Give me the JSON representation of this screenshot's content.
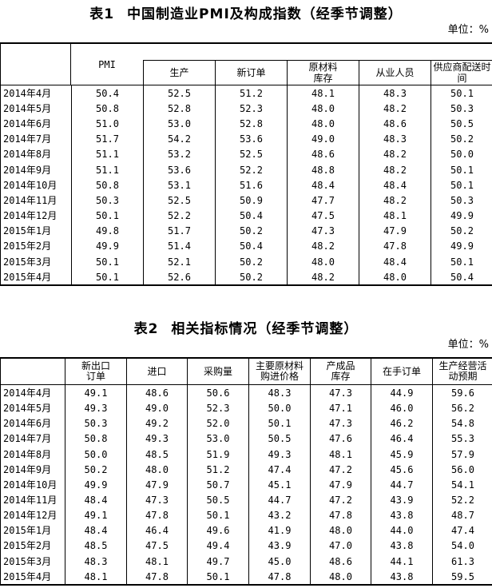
{
  "table1": {
    "title_tag": "表1",
    "title_text": "中国制造业PMI及构成指数（经季节调整）",
    "unit": "单位：%",
    "header_pmi": "PMI",
    "sub_headers": [
      "生产",
      "新订单",
      "原材料\n库存",
      "从业人员",
      "供应商配送时\n间"
    ],
    "rows": [
      {
        "label": "2014年4月",
        "values": [
          "50.4",
          "52.5",
          "51.2",
          "48.1",
          "48.3",
          "50.1"
        ]
      },
      {
        "label": "2014年5月",
        "values": [
          "50.8",
          "52.8",
          "52.3",
          "48.0",
          "48.2",
          "50.3"
        ]
      },
      {
        "label": "2014年6月",
        "values": [
          "51.0",
          "53.0",
          "52.8",
          "48.0",
          "48.6",
          "50.5"
        ]
      },
      {
        "label": "2014年7月",
        "values": [
          "51.7",
          "54.2",
          "53.6",
          "49.0",
          "48.3",
          "50.2"
        ]
      },
      {
        "label": "2014年8月",
        "values": [
          "51.1",
          "53.2",
          "52.5",
          "48.6",
          "48.2",
          "50.0"
        ]
      },
      {
        "label": "2014年9月",
        "values": [
          "51.1",
          "53.6",
          "52.2",
          "48.8",
          "48.2",
          "50.1"
        ]
      },
      {
        "label": "2014年10月",
        "values": [
          "50.8",
          "53.1",
          "51.6",
          "48.4",
          "48.4",
          "50.1"
        ]
      },
      {
        "label": "2014年11月",
        "values": [
          "50.3",
          "52.5",
          "50.9",
          "47.7",
          "48.2",
          "50.3"
        ]
      },
      {
        "label": "2014年12月",
        "values": [
          "50.1",
          "52.2",
          "50.4",
          "47.5",
          "48.1",
          "49.9"
        ]
      },
      {
        "label": "2015年1月",
        "values": [
          "49.8",
          "51.7",
          "50.2",
          "47.3",
          "47.9",
          "50.2"
        ]
      },
      {
        "label": "2015年2月",
        "values": [
          "49.9",
          "51.4",
          "50.4",
          "48.2",
          "47.8",
          "49.9"
        ]
      },
      {
        "label": "2015年3月",
        "values": [
          "50.1",
          "52.1",
          "50.2",
          "48.0",
          "48.4",
          "50.1"
        ]
      },
      {
        "label": "2015年4月",
        "values": [
          "50.1",
          "52.6",
          "50.2",
          "48.2",
          "48.0",
          "50.4"
        ]
      }
    ]
  },
  "table2": {
    "title_tag": "表2",
    "title_text": "相关指标情况（经季节调整）",
    "unit": "单位：%",
    "headers": [
      "新出口\n订单",
      "进口",
      "采购量",
      "主要原材料\n购进价格",
      "产成品\n库存",
      "在手订单",
      "生产经营活\n动预期"
    ],
    "rows": [
      {
        "label": "2014年4月",
        "values": [
          "49.1",
          "48.6",
          "50.6",
          "48.3",
          "47.3",
          "44.9",
          "59.6"
        ]
      },
      {
        "label": "2014年5月",
        "values": [
          "49.3",
          "49.0",
          "52.3",
          "50.0",
          "47.1",
          "46.0",
          "56.2"
        ]
      },
      {
        "label": "2014年6月",
        "values": [
          "50.3",
          "49.2",
          "52.0",
          "50.1",
          "47.3",
          "46.2",
          "54.8"
        ]
      },
      {
        "label": "2014年7月",
        "values": [
          "50.8",
          "49.3",
          "53.0",
          "50.5",
          "47.6",
          "46.4",
          "55.3"
        ]
      },
      {
        "label": "2014年8月",
        "values": [
          "50.0",
          "48.5",
          "51.9",
          "49.3",
          "48.1",
          "45.9",
          "57.9"
        ]
      },
      {
        "label": "2014年9月",
        "values": [
          "50.2",
          "48.0",
          "51.2",
          "47.4",
          "47.2",
          "45.6",
          "56.0"
        ]
      },
      {
        "label": "2014年10月",
        "values": [
          "49.9",
          "47.9",
          "50.7",
          "45.1",
          "47.9",
          "44.7",
          "54.1"
        ]
      },
      {
        "label": "2014年11月",
        "values": [
          "48.4",
          "47.3",
          "50.5",
          "44.7",
          "47.2",
          "43.9",
          "52.2"
        ]
      },
      {
        "label": "2014年12月",
        "values": [
          "49.1",
          "47.8",
          "50.1",
          "43.2",
          "47.8",
          "43.8",
          "48.7"
        ]
      },
      {
        "label": "2015年1月",
        "values": [
          "48.4",
          "46.4",
          "49.6",
          "41.9",
          "48.0",
          "44.0",
          "47.4"
        ]
      },
      {
        "label": "2015年2月",
        "values": [
          "48.5",
          "47.5",
          "49.4",
          "43.9",
          "47.0",
          "43.8",
          "54.0"
        ]
      },
      {
        "label": "2015年3月",
        "values": [
          "48.3",
          "48.1",
          "49.7",
          "45.0",
          "48.6",
          "44.1",
          "61.3"
        ]
      },
      {
        "label": "2015年4月",
        "values": [
          "48.1",
          "47.8",
          "50.1",
          "47.8",
          "48.0",
          "43.8",
          "59.5"
        ]
      }
    ]
  }
}
